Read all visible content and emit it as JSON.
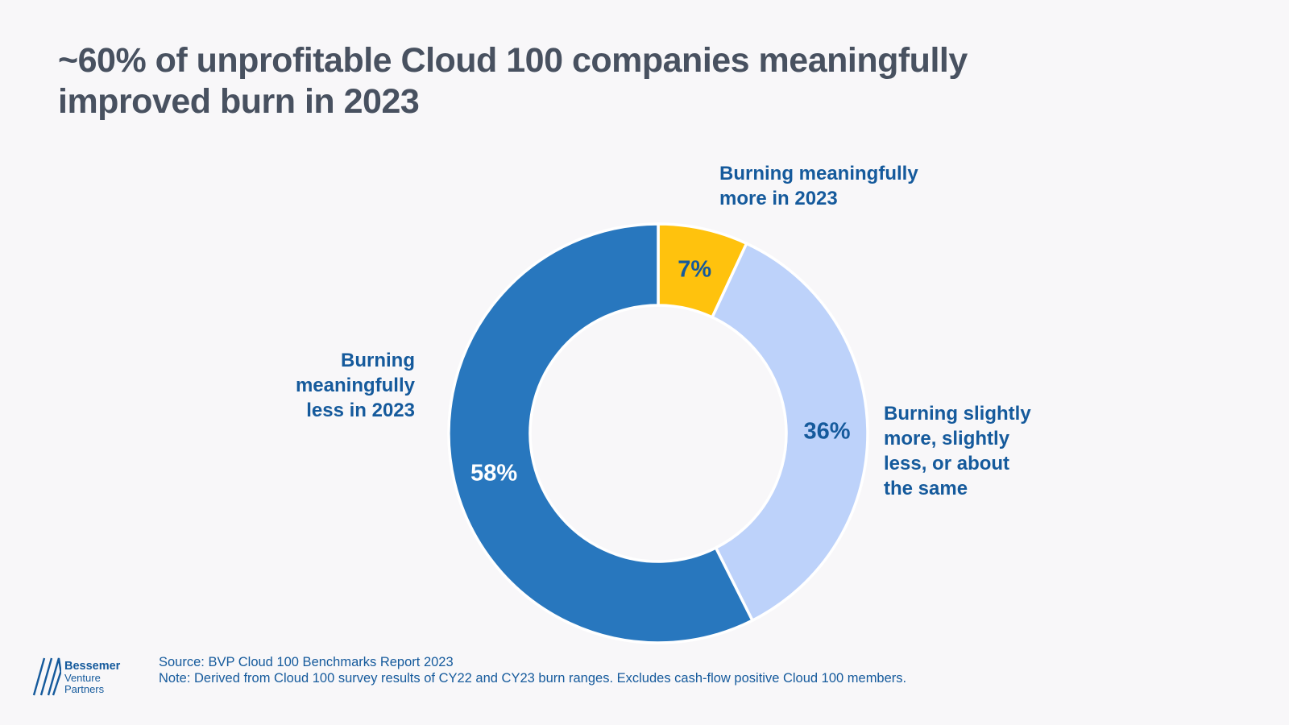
{
  "page": {
    "title": "~60% of unprofitable Cloud 100 companies meaningfully\nimproved burn in 2023"
  },
  "chart_data": {
    "type": "pie",
    "variant": "donut",
    "title": "~60% of unprofitable Cloud 100 companies meaningfully improved burn in 2023",
    "start_angle": "12 o'clock",
    "direction": "clockwise",
    "segments": [
      {
        "label": "Burning meaningfully more in 2023",
        "value": 7,
        "display_value": "7%",
        "color": "#FFC20D",
        "value_label_color": "#155A9C"
      },
      {
        "label": "Burning slightly more, slightly less, or about the same",
        "value": 36,
        "display_value": "36%",
        "color": "#BDD2FA",
        "value_label_color": "#155A9C"
      },
      {
        "label": "Burning meaningfully less in 2023",
        "value": 58,
        "display_value": "58%",
        "color": "#2877BE",
        "value_label_color": "#FFFFFF"
      }
    ]
  },
  "callouts": {
    "more": "Burning meaningfully\nmore in 2023",
    "same": "Burning slightly\nmore, slightly\nless, or about\nthe same",
    "less": "Burning\nmeaningfully\nless in 2023"
  },
  "footer": {
    "logo": {
      "line1": "Bessemer",
      "line2": "Venture",
      "line3": "Partners"
    },
    "source": "Source: BVP Cloud 100 Benchmarks Report 2023",
    "note": "Note: Derived from Cloud 100 survey results of CY22 and CY23 burn ranges. Excludes cash-flow positive Cloud 100 members."
  },
  "colors": {
    "background": "#F8F7F9",
    "title_text": "#485160",
    "label_blue": "#155A9C",
    "segment_dark_blue": "#2877BE",
    "segment_light_blue": "#BDD2FA",
    "segment_yellow": "#FFC20D"
  }
}
